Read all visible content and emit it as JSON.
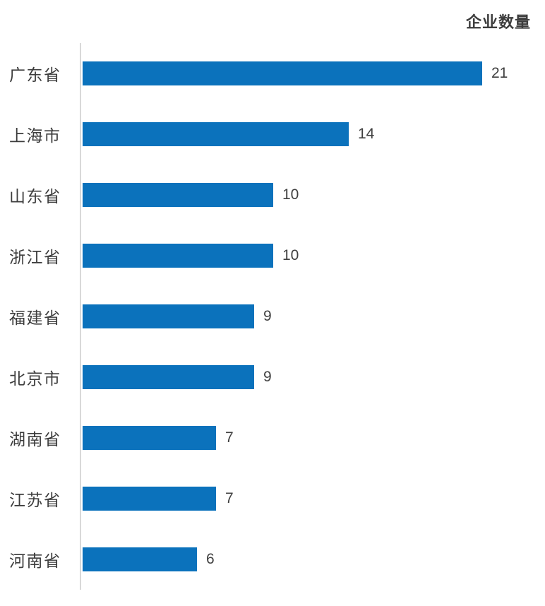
{
  "title": "企业数量",
  "chart_data": {
    "type": "bar",
    "orientation": "horizontal",
    "title": "企业数量",
    "xlabel": "",
    "ylabel": "",
    "categories": [
      "广东省",
      "上海市",
      "山东省",
      "浙江省",
      "福建省",
      "北京市",
      "湖南省",
      "江苏省",
      "河南省"
    ],
    "values": [
      21,
      14,
      10,
      10,
      9,
      9,
      7,
      7,
      6
    ],
    "xlim": [
      0,
      21
    ],
    "grid": false,
    "legend": false,
    "data_labels": true,
    "bar_color": "#0b72bc",
    "axis_line_color": "#d9d9d9",
    "value_label_color": "#404040",
    "category_label_color": "#3c3c3c",
    "title_color": "#3c3c3c",
    "background_color": "#ffffff"
  }
}
